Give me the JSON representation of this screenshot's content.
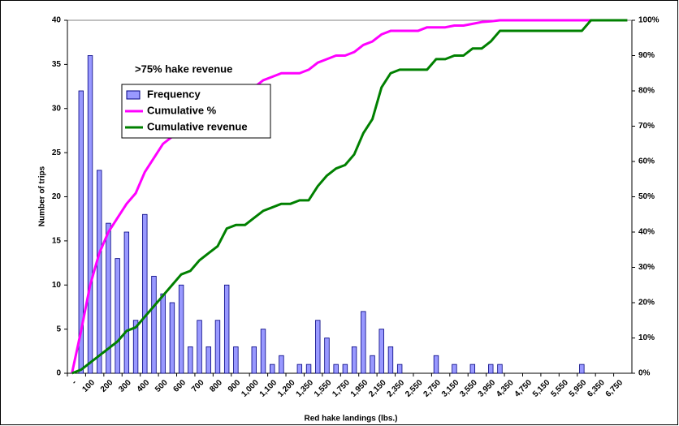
{
  "chart_data": {
    "type": "bar",
    "annotation": ">75% hake revenue",
    "x_label": "Red hake landings (lbs.)",
    "y_label": "Number of trips",
    "categories": [
      "-",
      null,
      "100",
      null,
      "200",
      null,
      "300",
      null,
      "400",
      null,
      "500",
      null,
      "600",
      null,
      "700",
      null,
      "800",
      null,
      "900",
      null,
      "1,000",
      null,
      "1,100",
      null,
      "1,200",
      null,
      "1,350",
      null,
      "1,550",
      null,
      "1,750",
      null,
      "1,950",
      null,
      "2,150",
      null,
      "2,350",
      null,
      "2,550",
      null,
      "2,750",
      null,
      "3,150",
      null,
      "3,550",
      null,
      "3,950",
      null,
      "4,350",
      null,
      "4,750",
      null,
      "5,150",
      null,
      "5,550",
      null,
      "5,950",
      null,
      "6,350",
      null,
      "6,750",
      null
    ],
    "series": [
      {
        "name": "Frequency",
        "type": "bar",
        "color": "#9999ff",
        "values": [
          0,
          32,
          36,
          23,
          17,
          13,
          16,
          6,
          18,
          11,
          9,
          8,
          10,
          3,
          6,
          3,
          6,
          10,
          3,
          0,
          3,
          5,
          1,
          2,
          0,
          1,
          1,
          6,
          4,
          1,
          1,
          3,
          7,
          2,
          5,
          3,
          1,
          0,
          0,
          0,
          2,
          0,
          1,
          0,
          1,
          0,
          1,
          1,
          0,
          0,
          0,
          0,
          0,
          0,
          0,
          0,
          1,
          0,
          0,
          0,
          0,
          0
        ]
      },
      {
        "name": "Cumulative %",
        "type": "line",
        "axis": "y2",
        "color": "#ff00ff",
        "values": [
          0,
          12,
          25,
          34,
          40,
          44,
          48,
          51,
          57,
          61,
          65,
          67,
          70,
          71,
          73,
          74,
          76,
          79,
          80,
          80,
          81,
          83,
          84,
          85,
          85,
          85,
          86,
          88,
          89,
          90,
          90,
          91,
          93,
          94,
          96,
          97,
          97,
          97,
          97,
          98,
          98,
          98,
          98.5,
          98.5,
          99,
          99.5,
          99.7,
          100,
          100,
          100,
          100,
          100,
          100,
          100,
          100,
          100,
          100,
          100,
          100,
          100,
          100,
          100
        ]
      },
      {
        "name": "Cumulative revenue",
        "type": "line",
        "axis": "y2",
        "color": "#008000",
        "values": [
          0,
          1,
          3,
          5,
          7,
          9,
          12,
          13,
          16,
          19,
          22,
          25,
          28,
          29,
          32,
          34,
          36,
          41,
          42,
          42,
          44,
          46,
          47,
          48,
          48,
          49,
          49,
          53,
          56,
          58,
          59,
          62,
          68,
          72,
          81,
          85,
          86,
          86,
          86,
          86,
          89,
          89,
          90,
          90,
          92,
          92,
          94,
          97,
          97,
          97,
          97,
          97,
          97,
          97,
          97,
          97,
          97,
          100,
          100,
          100,
          100,
          100
        ]
      }
    ],
    "ylim": [
      0,
      40
    ],
    "yticks": [
      0,
      5,
      10,
      15,
      20,
      25,
      30,
      35,
      40
    ],
    "y2lim": [
      0,
      100
    ],
    "y2ticks": [
      {
        "value": 0,
        "label": "0%"
      },
      {
        "value": 10,
        "label": "10%"
      },
      {
        "value": 20,
        "label": "20%"
      },
      {
        "value": 30,
        "label": "30%"
      },
      {
        "value": 40,
        "label": "40%"
      },
      {
        "value": 50,
        "label": "50%"
      },
      {
        "value": 60,
        "label": "60%"
      },
      {
        "value": 70,
        "label": "70%"
      },
      {
        "value": 80,
        "label": "80%"
      },
      {
        "value": 90,
        "label": "90%"
      },
      {
        "value": 100,
        "label": "100%"
      }
    ],
    "grid": false
  }
}
